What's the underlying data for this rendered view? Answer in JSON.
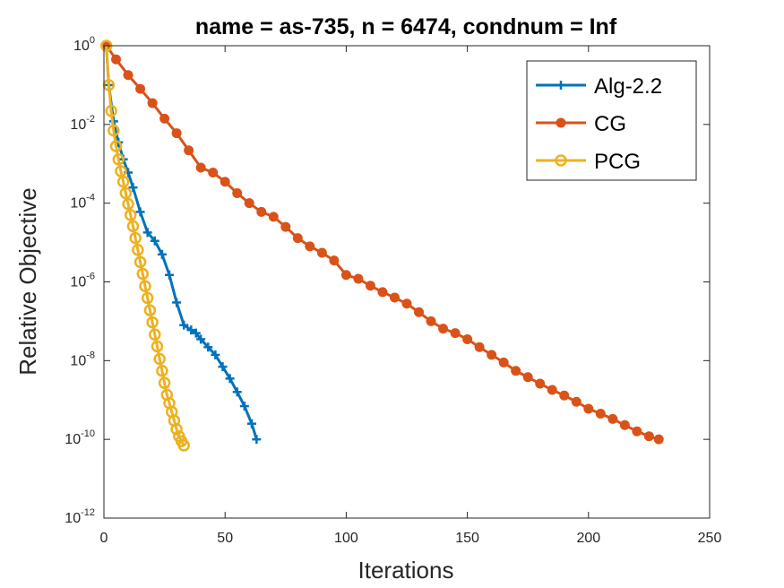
{
  "chart_data": {
    "type": "line",
    "title": "name = as-735, n = 6474, condnum = Inf",
    "xlabel": "Iterations",
    "ylabel": "Relative Objective",
    "xlim": [
      0,
      250
    ],
    "ylim": [
      1e-12,
      1
    ],
    "yscale": "log",
    "x_ticks": [
      0,
      50,
      100,
      150,
      200,
      250
    ],
    "y_tick_exponents": [
      0,
      -2,
      -4,
      -6,
      -8,
      -10,
      -12
    ],
    "y_tick_base": "10",
    "grid": false,
    "legend_position": "top-right",
    "series": [
      {
        "name": "Alg-2.2",
        "color": "#0072BD",
        "marker": "plus",
        "x": [
          1,
          2,
          4,
          6,
          8,
          10,
          12,
          15,
          18,
          21,
          24,
          27,
          30,
          33,
          36,
          38,
          40,
          43,
          46,
          49,
          52,
          55,
          58,
          61,
          63
        ],
        "y": [
          1,
          0.1,
          0.012,
          0.0035,
          0.0013,
          0.0006,
          0.00025,
          6e-05,
          1.8e-05,
          1.1e-05,
          5e-06,
          1.5e-06,
          3e-07,
          8e-08,
          6e-08,
          5e-08,
          3.5e-08,
          2.2e-08,
          1.4e-08,
          7e-09,
          3.5e-09,
          1.6e-09,
          7e-10,
          2.5e-10,
          1e-10
        ]
      },
      {
        "name": "CG",
        "color": "#D95319",
        "marker": "circle-filled",
        "x": [
          1,
          5,
          10,
          15,
          20,
          25,
          30,
          35,
          40,
          45,
          50,
          55,
          60,
          65,
          70,
          75,
          80,
          85,
          90,
          95,
          100,
          105,
          110,
          115,
          120,
          125,
          130,
          135,
          140,
          145,
          150,
          155,
          160,
          165,
          170,
          175,
          180,
          185,
          190,
          195,
          200,
          205,
          210,
          215,
          220,
          225,
          229
        ],
        "y": [
          1,
          0.45,
          0.18,
          0.08,
          0.035,
          0.014,
          0.006,
          0.0022,
          0.0008,
          0.0006,
          0.00035,
          0.00018,
          0.0001,
          6e-05,
          4.5e-05,
          2.5e-05,
          1.3e-05,
          8e-06,
          5.5e-06,
          3.5e-06,
          1.5e-06,
          1.2e-06,
          8e-07,
          5.5e-07,
          4e-07,
          2.8e-07,
          1.7e-07,
          1e-07,
          6.5e-08,
          5e-08,
          3.5e-08,
          2.2e-08,
          1.4e-08,
          9e-09,
          5.5e-09,
          3.8e-09,
          2.6e-09,
          1.8e-09,
          1.3e-09,
          9e-10,
          6e-10,
          4.5e-10,
          3.3e-10,
          2.3e-10,
          1.6e-10,
          1.2e-10,
          1e-10
        ]
      },
      {
        "name": "PCG",
        "color": "#EDB120",
        "marker": "circle-open",
        "x": [
          1,
          2,
          3,
          4,
          5,
          6,
          7,
          8,
          9,
          10,
          11,
          12,
          13,
          14,
          15,
          16,
          17,
          18,
          19,
          20,
          21,
          22,
          23,
          24,
          25,
          26,
          27,
          28,
          29,
          30,
          31,
          32,
          33
        ],
        "y": [
          1,
          0.1,
          0.022,
          0.007,
          0.0028,
          0.0013,
          0.00065,
          0.00035,
          0.00018,
          9.5e-05,
          5e-05,
          2.6e-05,
          1.3e-05,
          6.5e-06,
          3.2e-06,
          1.6e-06,
          7.8e-07,
          3.9e-07,
          1.9e-07,
          9.4e-08,
          4.6e-08,
          2.3e-08,
          1.1e-08,
          5.5e-09,
          2.7e-09,
          1.35e-09,
          8.3e-10,
          5e-10,
          3e-10,
          1.8e-10,
          1.2e-10,
          9e-11,
          7e-11
        ]
      }
    ]
  }
}
